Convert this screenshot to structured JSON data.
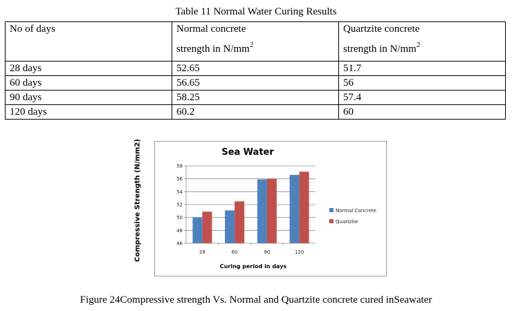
{
  "table": {
    "caption": "Table 11 Normal Water Curing Results",
    "headers": {
      "col1": "No of days",
      "col2_line1": "Normal concrete",
      "col2_line2": "strength in N/mm",
      "col2_sup": "2",
      "col3_line1": "Quartzite concrete",
      "col3_line2": "strength in N/mm",
      "col3_sup": "2"
    },
    "rows": [
      {
        "days": "28 days",
        "normal": "52.65",
        "quartzite": "51.7"
      },
      {
        "days": "60 days",
        "normal": "56.65",
        "quartzite": "56"
      },
      {
        "days": "90 days",
        "normal": "58.25",
        "quartzite": "57.4"
      },
      {
        "days": "120 days",
        "normal": "60.2",
        "quartzite": "60"
      }
    ]
  },
  "chart_data": {
    "type": "bar",
    "title": "Sea Water",
    "xlabel": "Curing period in days",
    "ylabel": "Compressive Strength (N/mm2)",
    "categories": [
      "28",
      "60",
      "90",
      "120"
    ],
    "series": [
      {
        "name": "Normal Concrete",
        "color": "#4f81bd",
        "values": [
          50,
          51.1,
          55.9,
          56.6
        ]
      },
      {
        "name": "Quartzite",
        "color": "#c0504d",
        "values": [
          50.9,
          52.5,
          56,
          57.1
        ]
      }
    ],
    "ylim": [
      46,
      58
    ],
    "yticks": [
      "46",
      "48",
      "50",
      "52",
      "54",
      "56",
      "58"
    ],
    "grid": true,
    "legend": "right"
  },
  "figure_caption": "Figure 24Compressive strength Vs. Normal and Quartzite concrete cured inSeawater"
}
